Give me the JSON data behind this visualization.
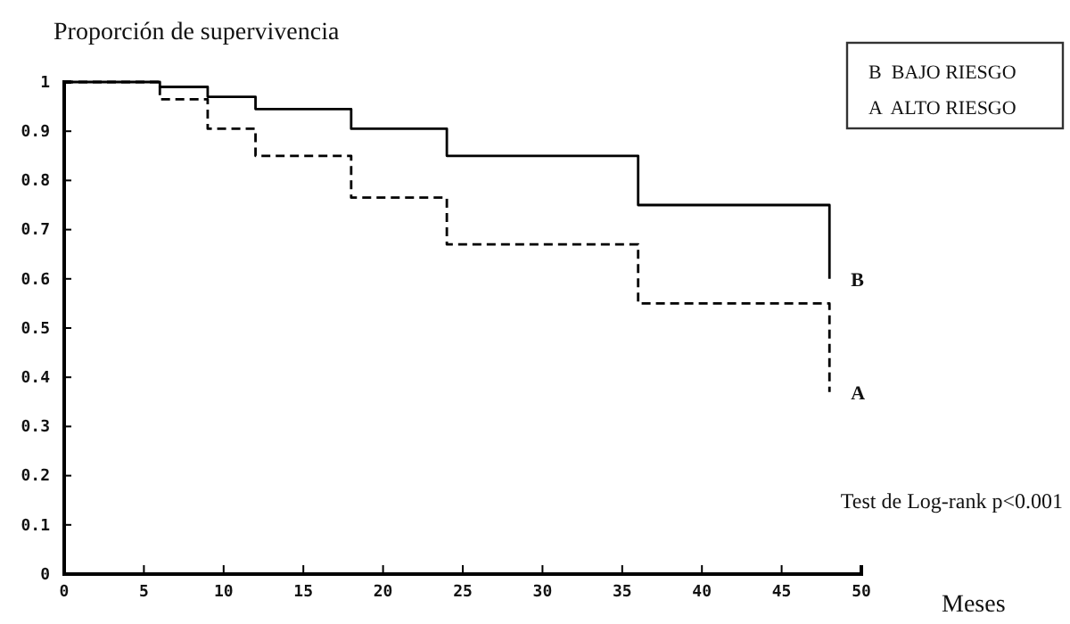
{
  "chart_data": {
    "type": "step",
    "ylabel": "Proporción de supervivencia",
    "xlabel": "Meses",
    "annotations": [
      "B  BAJO RIESGO",
      "A  ALTO RIESGO",
      "Test de Log-rank p<0.001"
    ],
    "series": [
      {
        "name": "B",
        "color": "#000000",
        "line_style": "solid",
        "x": [
          0,
          6,
          9,
          12,
          18,
          24,
          36,
          48
        ],
        "values": [
          1,
          0.99,
          0.97,
          0.945,
          0.905,
          0.85,
          0.75,
          0.6
        ]
      },
      {
        "name": "A",
        "color": "#000000",
        "line_style": "dashed",
        "x": [
          0,
          6,
          9,
          12,
          18,
          24,
          36,
          48
        ],
        "values": [
          1,
          0.965,
          0.905,
          0.85,
          0.765,
          0.67,
          0.55,
          0.37
        ]
      }
    ],
    "xlim": [
      0,
      50
    ],
    "ylim": [
      0,
      1
    ],
    "xticks": [
      0,
      5,
      10,
      15,
      20,
      25,
      30,
      35,
      40,
      45,
      50
    ],
    "yticks": [
      0,
      0.1,
      0.2,
      0.3,
      0.4,
      0.5,
      0.6,
      0.7,
      0.8,
      0.9,
      1
    ],
    "grid": false,
    "legend": false,
    "marker": "none"
  }
}
